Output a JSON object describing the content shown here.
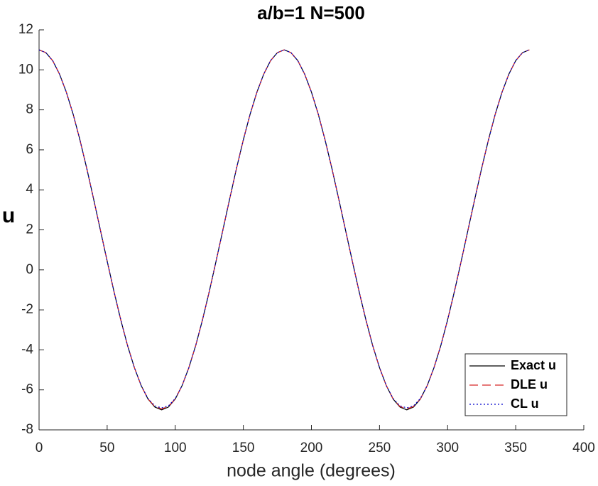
{
  "chart_data": {
    "type": "line",
    "title": "a/b=1  N=500",
    "xlabel": "node angle (degrees)",
    "ylabel": "u",
    "x": [
      0,
      5,
      10,
      15,
      20,
      25,
      30,
      35,
      40,
      45,
      50,
      55,
      60,
      65,
      70,
      75,
      80,
      85,
      90,
      95,
      100,
      105,
      110,
      115,
      120,
      125,
      130,
      135,
      140,
      145,
      150,
      155,
      160,
      165,
      170,
      175,
      180,
      185,
      190,
      195,
      200,
      205,
      210,
      215,
      220,
      225,
      230,
      235,
      240,
      245,
      250,
      255,
      260,
      265,
      270,
      275,
      280,
      285,
      290,
      295,
      300,
      305,
      310,
      315,
      320,
      325,
      330,
      335,
      340,
      345,
      350,
      355,
      360
    ],
    "series": [
      {
        "name": "Exact u",
        "color": "#000000",
        "dash": "none",
        "values": [
          11,
          10.86,
          10.46,
          9.79,
          8.89,
          7.79,
          6.5,
          5.08,
          3.56,
          2,
          0.44,
          -1.08,
          -2.5,
          -3.79,
          -4.89,
          -5.79,
          -6.46,
          -6.86,
          -7,
          -6.86,
          -6.46,
          -5.79,
          -4.89,
          -3.79,
          -2.5,
          -1.08,
          0.44,
          2,
          3.56,
          5.08,
          6.5,
          7.79,
          8.89,
          9.79,
          10.46,
          10.86,
          11,
          10.86,
          10.46,
          9.79,
          8.89,
          7.79,
          6.5,
          5.08,
          3.56,
          2,
          0.44,
          -1.08,
          -2.5,
          -3.79,
          -4.89,
          -5.79,
          -6.46,
          -6.86,
          -7,
          -6.86,
          -6.46,
          -5.79,
          -4.89,
          -3.79,
          -2.5,
          -1.08,
          0.44,
          2,
          3.56,
          5.08,
          6.5,
          7.79,
          8.89,
          9.79,
          10.46,
          10.86,
          11
        ]
      },
      {
        "name": "DLE u",
        "color": "#d62728",
        "dash": "12 6",
        "values": [
          11,
          10.86,
          10.46,
          9.79,
          8.89,
          7.79,
          6.5,
          5.08,
          3.56,
          2,
          0.44,
          -1.08,
          -2.5,
          -3.79,
          -4.89,
          -5.79,
          -6.45,
          -6.83,
          -6.95,
          -6.83,
          -6.45,
          -5.79,
          -4.89,
          -3.79,
          -2.5,
          -1.08,
          0.44,
          2,
          3.56,
          5.08,
          6.5,
          7.79,
          8.89,
          9.79,
          10.46,
          10.86,
          11,
          10.86,
          10.46,
          9.79,
          8.89,
          7.79,
          6.5,
          5.08,
          3.56,
          2,
          0.44,
          -1.08,
          -2.5,
          -3.79,
          -4.89,
          -5.79,
          -6.45,
          -6.83,
          -6.95,
          -6.83,
          -6.45,
          -5.79,
          -4.89,
          -3.79,
          -2.5,
          -1.08,
          0.44,
          2,
          3.56,
          5.08,
          6.5,
          7.79,
          8.89,
          9.79,
          10.46,
          10.86,
          11
        ]
      },
      {
        "name": "CL u",
        "color": "#0000cc",
        "dash": "2 3",
        "values": [
          11,
          10.86,
          10.46,
          9.79,
          8.89,
          7.79,
          6.5,
          5.08,
          3.56,
          2,
          0.44,
          -1.08,
          -2.5,
          -3.79,
          -4.89,
          -5.79,
          -6.43,
          -6.8,
          -6.9,
          -6.8,
          -6.43,
          -5.79,
          -4.89,
          -3.79,
          -2.5,
          -1.08,
          0.44,
          2,
          3.56,
          5.08,
          6.5,
          7.79,
          8.89,
          9.79,
          10.46,
          10.86,
          11,
          10.86,
          10.46,
          9.79,
          8.89,
          7.79,
          6.5,
          5.08,
          3.56,
          2,
          0.44,
          -1.08,
          -2.5,
          -3.79,
          -4.89,
          -5.79,
          -6.43,
          -6.8,
          -6.9,
          -6.8,
          -6.43,
          -5.79,
          -4.89,
          -3.79,
          -2.5,
          -1.08,
          0.44,
          2,
          3.56,
          5.08,
          6.5,
          7.79,
          8.89,
          9.79,
          10.46,
          10.86,
          11
        ]
      }
    ],
    "xlim": [
      0,
      400
    ],
    "xticks": [
      0,
      50,
      100,
      150,
      200,
      250,
      300,
      350,
      400
    ],
    "ylim": [
      -8,
      12
    ],
    "yticks": [
      -8,
      -6,
      -4,
      -2,
      0,
      2,
      4,
      6,
      8,
      10,
      12
    ],
    "legend": "lower right"
  }
}
